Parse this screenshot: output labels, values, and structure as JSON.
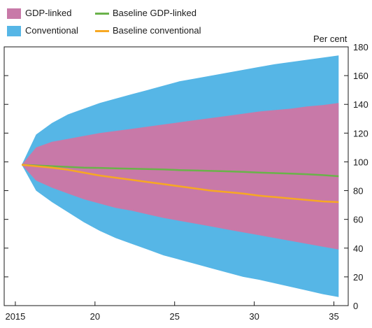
{
  "legend": {
    "items": [
      {
        "label": "GDP-linked",
        "kind": "area",
        "color": "#c879a8"
      },
      {
        "label": "Conventional",
        "kind": "area",
        "color": "#56b6e6"
      },
      {
        "label": "Baseline GDP-linked",
        "kind": "line",
        "color": "#6ab24a"
      },
      {
        "label": "Baseline conventional",
        "kind": "line",
        "color": "#f7a823"
      }
    ]
  },
  "chart_data": {
    "type": "area",
    "title": "",
    "xlabel": "",
    "ylabel": "Per cent",
    "xlim": [
      2014.3,
      2035.9
    ],
    "ylim": [
      0,
      180
    ],
    "x_ticks": [
      2015,
      2020,
      2025,
      2030,
      2035
    ],
    "x_tick_labels": [
      "2015",
      "20",
      "25",
      "30",
      "35"
    ],
    "y_ticks": [
      0,
      20,
      40,
      60,
      80,
      100,
      120,
      140,
      160,
      180
    ],
    "y_tick_labels": [
      "0",
      "20",
      "40",
      "60",
      "80",
      "100",
      "120",
      "140",
      "160",
      "180"
    ],
    "grid": false,
    "legend_position": "top-left",
    "x": [
      2015.4,
      2016.3,
      2017.3,
      2018.3,
      2019.3,
      2020.3,
      2021.3,
      2022.3,
      2023.3,
      2024.3,
      2025.3,
      2026.3,
      2027.3,
      2028.3,
      2029.3,
      2030.3,
      2031.3,
      2032.3,
      2033.3,
      2034.3,
      2035.3
    ],
    "series": [
      {
        "name": "Conventional",
        "kind": "band",
        "color": "#56b6e6",
        "upper": [
          98,
          119,
          127,
          133,
          137,
          141,
          144,
          147,
          150,
          153,
          156,
          158,
          160,
          162,
          164,
          166,
          168,
          169.5,
          171,
          172.5,
          174
        ],
        "lower": [
          98,
          80,
          72,
          65,
          58,
          52,
          47,
          43,
          39,
          35,
          32,
          29,
          26,
          23,
          20,
          18,
          15.5,
          13,
          10.5,
          8,
          6
        ]
      },
      {
        "name": "GDP-linked",
        "kind": "band",
        "color": "#c879a8",
        "upper": [
          98,
          110,
          114,
          116,
          118,
          120,
          121.5,
          123,
          124.5,
          126,
          127.5,
          129,
          130.5,
          132,
          133.5,
          135,
          136,
          137,
          138.5,
          139.5,
          141
        ],
        "lower": [
          98,
          87,
          82,
          78,
          74,
          71,
          68,
          66,
          63.5,
          61,
          59,
          57,
          55,
          53,
          51,
          49,
          47,
          45,
          43,
          41,
          39
        ]
      },
      {
        "name": "Baseline GDP-linked",
        "kind": "line",
        "color": "#6ab24a",
        "values": [
          98,
          97.5,
          97,
          96.5,
          96,
          95.8,
          95.5,
          95.2,
          95,
          94.7,
          94.3,
          94,
          93.7,
          93.4,
          93,
          92.6,
          92.2,
          91.8,
          91.4,
          90.8,
          90
        ]
      },
      {
        "name": "Baseline conventional",
        "kind": "line",
        "color": "#f7a823",
        "values": [
          98,
          97,
          96,
          94.5,
          92.5,
          90.5,
          89,
          87.5,
          86,
          84.5,
          83,
          81.5,
          80,
          79,
          78,
          76.5,
          75.5,
          74.5,
          73.5,
          72.5,
          72
        ]
      }
    ]
  }
}
